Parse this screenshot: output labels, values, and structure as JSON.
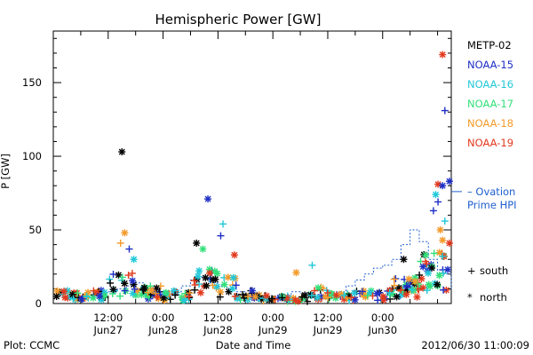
{
  "chart_data": {
    "type": "scatter",
    "title": "Hemispheric Power [GW]",
    "ylabel": "P [GW]",
    "xlabel": "Date and Time",
    "ylim": [
      0,
      185
    ],
    "yticks": [
      0,
      50,
      100,
      150
    ],
    "xlim_hours": [
      0,
      87
    ],
    "xticks": [
      {
        "hour": 12,
        "line1": "12:00",
        "line2": "Jun27"
      },
      {
        "hour": 24,
        "line1": "0:00",
        "line2": "Jun28"
      },
      {
        "hour": 36,
        "line1": "12:00",
        "line2": "Jun28"
      },
      {
        "hour": 48,
        "line1": "0:00",
        "line2": "Jun29"
      },
      {
        "hour": 60,
        "line1": "12:00",
        "line2": "Jun29"
      },
      {
        "hour": 72,
        "line1": "0:00",
        "line2": "Jun30"
      }
    ],
    "series": [
      {
        "name": "METP-02",
        "color": "#000000"
      },
      {
        "name": "NOAA-15",
        "color": "#1f2fc4"
      },
      {
        "name": "NOAA-16",
        "color": "#22c8d8"
      },
      {
        "name": "NOAA-17",
        "color": "#33e07a"
      },
      {
        "name": "NOAA-18",
        "color": "#f39a2a"
      },
      {
        "name": "NOAA-19",
        "color": "#e23a1e"
      }
    ],
    "ovation": {
      "label_line1": "– Ovation",
      "label_line2": "Prime HPI",
      "color": "#1f5fcf",
      "value_at_edge": 76,
      "steps": [
        [
          12,
          8
        ],
        [
          14,
          10
        ],
        [
          16,
          12
        ],
        [
          18,
          14
        ],
        [
          20,
          10
        ],
        [
          22,
          8
        ],
        [
          24,
          6
        ],
        [
          26,
          8
        ],
        [
          28,
          12
        ],
        [
          30,
          16
        ],
        [
          32,
          18
        ],
        [
          34,
          14
        ],
        [
          36,
          12
        ],
        [
          38,
          10
        ],
        [
          40,
          8
        ],
        [
          42,
          6
        ],
        [
          44,
          5
        ],
        [
          46,
          5
        ],
        [
          48,
          5
        ],
        [
          50,
          6
        ],
        [
          52,
          8
        ],
        [
          54,
          7
        ],
        [
          56,
          6
        ],
        [
          58,
          5
        ],
        [
          60,
          6
        ],
        [
          62,
          8
        ],
        [
          64,
          12
        ],
        [
          66,
          16
        ],
        [
          68,
          20
        ],
        [
          70,
          24
        ],
        [
          72,
          26
        ],
        [
          74,
          30
        ],
        [
          76,
          40
        ],
        [
          78,
          50
        ],
        [
          80,
          42
        ],
        [
          82,
          30
        ],
        [
          84,
          20
        ],
        [
          87,
          10
        ]
      ]
    },
    "markers": [
      {
        "symbol": "+",
        "label": "south"
      },
      {
        "symbol": "*",
        "label": "north"
      }
    ],
    "highlights": [
      {
        "series": 0,
        "hour": 15.0,
        "value": 103,
        "symbol": "*"
      },
      {
        "series": 4,
        "hour": 15.6,
        "value": 48,
        "symbol": "*"
      },
      {
        "series": 4,
        "hour": 14.7,
        "value": 41,
        "symbol": "+"
      },
      {
        "series": 1,
        "hour": 16.6,
        "value": 37,
        "symbol": "+"
      },
      {
        "series": 2,
        "hour": 17.6,
        "value": 30,
        "symbol": "*"
      },
      {
        "series": 1,
        "hour": 33.8,
        "value": 71,
        "symbol": "*"
      },
      {
        "series": 0,
        "hour": 31.3,
        "value": 41,
        "symbol": "*"
      },
      {
        "series": 2,
        "hour": 37.1,
        "value": 54,
        "symbol": "+"
      },
      {
        "series": 1,
        "hour": 36.6,
        "value": 46,
        "symbol": "+"
      },
      {
        "series": 3,
        "hour": 32.7,
        "value": 37,
        "symbol": "*"
      },
      {
        "series": 5,
        "hour": 39.6,
        "value": 33,
        "symbol": "*"
      },
      {
        "series": 2,
        "hour": 56.6,
        "value": 26,
        "symbol": "+"
      },
      {
        "series": 4,
        "hour": 53.1,
        "value": 21,
        "symbol": "*"
      },
      {
        "series": 5,
        "hour": 85.1,
        "value": 169,
        "symbol": "*"
      },
      {
        "series": 1,
        "hour": 85.6,
        "value": 131,
        "symbol": "+"
      },
      {
        "series": 1,
        "hour": 86.6,
        "value": 83,
        "symbol": "*"
      },
      {
        "series": 5,
        "hour": 84.1,
        "value": 81,
        "symbol": "*"
      },
      {
        "series": 1,
        "hour": 85.1,
        "value": 80,
        "symbol": "*"
      },
      {
        "series": 2,
        "hour": 83.6,
        "value": 74,
        "symbol": "*"
      },
      {
        "series": 1,
        "hour": 84.1,
        "value": 69,
        "symbol": "+"
      },
      {
        "series": 1,
        "hour": 83.1,
        "value": 63,
        "symbol": "+"
      },
      {
        "series": 2,
        "hour": 85.6,
        "value": 56,
        "symbol": "+"
      },
      {
        "series": 4,
        "hour": 84.6,
        "value": 50,
        "symbol": "*"
      },
      {
        "series": 4,
        "hour": 85.1,
        "value": 43,
        "symbol": "*"
      },
      {
        "series": 5,
        "hour": 86.6,
        "value": 41,
        "symbol": "*"
      },
      {
        "series": 2,
        "hour": 85.1,
        "value": 32,
        "symbol": "+"
      },
      {
        "series": 0,
        "hour": 76.6,
        "value": 30,
        "symbol": "*"
      },
      {
        "series": 5,
        "hour": 81.6,
        "value": 27,
        "symbol": "+"
      }
    ]
  },
  "footer": {
    "plot_credit": "Plot: CCMC",
    "timestamp": "2012/06/30 11:00:09"
  }
}
